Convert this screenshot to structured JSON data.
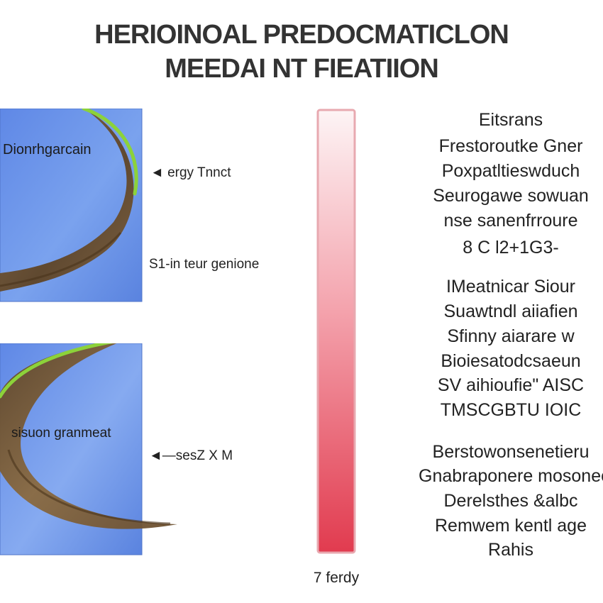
{
  "title": {
    "line1": "HERIOINOAL PREDOCMATICLON",
    "line2": "MEEDAI NT FIEATIION"
  },
  "panels": [
    {
      "label": "Dionrhgarcain",
      "arrow_text": "◄ ergy Tnnct",
      "note": "S1-in teur genione"
    },
    {
      "label": "sisuon granmeat",
      "arrow_text": "◄—sesZ X M"
    }
  ],
  "scale": {
    "label": "7 ferdy",
    "colors": {
      "top": "#e13b4f",
      "bottom": "#fdf4f5",
      "border": "#e8a9b0"
    }
  },
  "sidebar": {
    "group1": [
      "Eitsrans",
      "Frestoroutke Gner",
      "Poxpatltieswduch",
      "Seurogawe sowuan",
      "nse sanenfrroure",
      "8 C l2+1G3-"
    ],
    "group2": [
      "IMeatnicar Siour",
      "Suawtndl aiiafien",
      "Sfinny aiarare w",
      "Bioiesatodcsaeun",
      "SV aihioufie\" AISC",
      "TMSCGBTU IOIC"
    ],
    "group3": [
      "Berstowonsenetieru",
      "Gnabraponere mosonec",
      "Derelsthes &albc",
      "Remwem kentl age",
      "Rahis"
    ]
  },
  "colors": {
    "panel_bg": "#6b8fe0",
    "hair_brown": "#6e5030",
    "hair_green": "#8cd23a"
  }
}
